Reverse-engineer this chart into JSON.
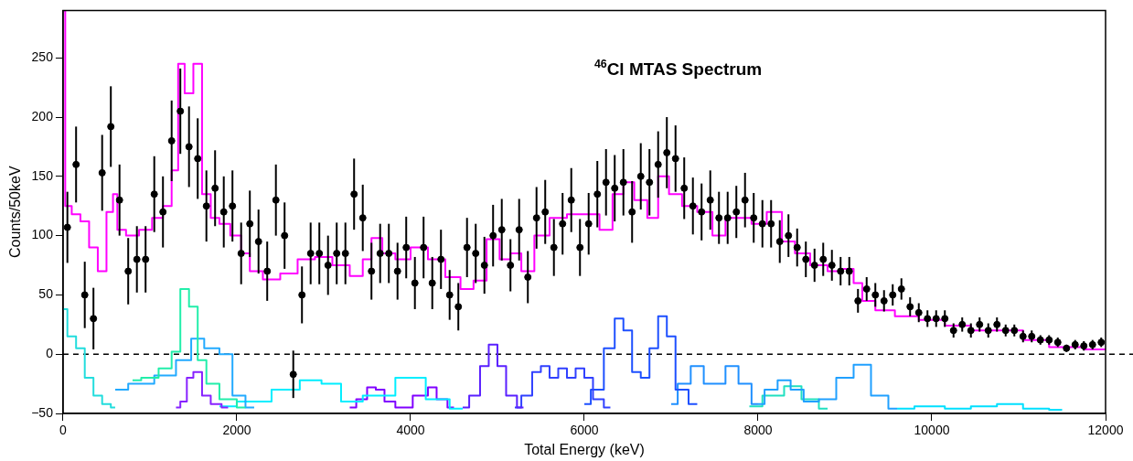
{
  "chart_data": {
    "type": "step",
    "title": "$^{46}$Cl MTAS Spectrum",
    "xlabel": "Total Energy (keV)",
    "ylabel": "Counts/50keV",
    "xlim": [
      0,
      12000
    ],
    "xticks": [
      0,
      2000,
      4000,
      6000,
      8000,
      10000,
      12000
    ],
    "ylim": [
      -50,
      290
    ],
    "yticks": [
      -50,
      0,
      50,
      100,
      150,
      200,
      250
    ],
    "grid": false,
    "legend": false,
    "ref_lines": [
      {
        "axis": "y",
        "value": 0,
        "color": "#000000",
        "line_style": "dashed"
      }
    ],
    "series": [
      {
        "type": "scatter",
        "marker": "circle",
        "color": "#000000",
        "x": [
          50,
          150,
          250,
          350,
          450,
          550,
          650,
          750,
          850,
          950,
          1050,
          1150,
          1250,
          1350,
          1450,
          1550,
          1650,
          1750,
          1850,
          1950,
          2050,
          2150,
          2250,
          2350,
          2450,
          2550,
          2650,
          2750,
          2850,
          2950,
          3050,
          3150,
          3250,
          3350,
          3450,
          3550,
          3650,
          3750,
          3850,
          3950,
          4050,
          4150,
          4250,
          4350,
          4450,
          4550,
          4650,
          4750,
          4850,
          4950,
          5050,
          5150,
          5250,
          5350,
          5450,
          5550,
          5650,
          5750,
          5850,
          5950,
          6050,
          6150,
          6250,
          6350,
          6450,
          6550,
          6650,
          6750,
          6850,
          6950,
          7050,
          7150,
          7250,
          7350,
          7450,
          7550,
          7650,
          7750,
          7850,
          7950,
          8050,
          8150,
          8250,
          8350,
          8450,
          8550,
          8650,
          8750,
          8850,
          8950,
          9050,
          9150,
          9250,
          9350,
          9450,
          9550,
          9650,
          9750,
          9850,
          9950,
          10050,
          10150,
          10250,
          10350,
          10450,
          10550,
          10650,
          10750,
          10850,
          10950,
          11050,
          11150,
          11250,
          11350,
          11450,
          11550,
          11650,
          11750,
          11850,
          11950
        ],
        "values": [
          107,
          160,
          50,
          30,
          153,
          192,
          130,
          70,
          80,
          80,
          135,
          120,
          180,
          205,
          175,
          165,
          125,
          140,
          120,
          125,
          85,
          110,
          95,
          70,
          130,
          100,
          -17,
          50,
          85,
          85,
          75,
          85,
          85,
          135,
          115,
          70,
          85,
          85,
          70,
          90,
          60,
          90,
          60,
          80,
          50,
          40,
          90,
          85,
          75,
          100,
          105,
          75,
          105,
          65,
          115,
          120,
          90,
          110,
          130,
          90,
          110,
          135,
          145,
          140,
          145,
          120,
          150,
          145,
          160,
          170,
          165,
          140,
          125,
          120,
          130,
          115,
          115,
          120,
          130,
          115,
          110,
          110,
          95,
          100,
          90,
          80,
          75,
          80,
          75,
          70,
          70,
          45,
          55,
          50,
          45,
          50,
          55,
          40,
          35,
          30,
          30,
          30,
          20,
          25,
          20,
          25,
          20,
          25,
          20,
          20,
          15,
          15,
          12,
          12,
          10,
          5,
          8,
          7,
          8,
          10
        ],
        "errors": [
          30,
          32,
          28,
          26,
          32,
          34,
          30,
          28,
          28,
          28,
          32,
          30,
          34,
          36,
          34,
          34,
          30,
          32,
          30,
          30,
          26,
          28,
          27,
          25,
          30,
          28,
          20,
          24,
          26,
          26,
          25,
          26,
          26,
          30,
          28,
          24,
          25,
          25,
          24,
          26,
          22,
          26,
          22,
          25,
          21,
          20,
          25,
          25,
          24,
          26,
          26,
          22,
          26,
          22,
          26,
          27,
          24,
          26,
          27,
          24,
          26,
          28,
          28,
          28,
          28,
          26,
          28,
          28,
          28,
          30,
          28,
          26,
          24,
          24,
          25,
          22,
          22,
          22,
          23,
          21,
          20,
          20,
          18,
          18,
          16,
          15,
          14,
          14,
          13,
          12,
          12,
          10,
          10,
          10,
          9,
          9,
          9,
          8,
          8,
          7,
          7,
          7,
          6,
          6,
          6,
          6,
          6,
          6,
          5,
          5,
          5,
          5,
          4,
          4,
          4,
          3,
          4,
          4,
          4,
          4
        ]
      },
      {
        "color": "#ff00ff",
        "x": [
          0,
          50,
          150,
          250,
          350,
          450,
          550,
          600,
          650,
          800,
          950,
          1100,
          1200,
          1300,
          1350,
          1450,
          1550,
          1650,
          1750,
          1850,
          2000,
          2100,
          2200,
          2400,
          2600,
          2800,
          3000,
          3200,
          3400,
          3500,
          3600,
          3750,
          3900,
          4100,
          4300,
          4500,
          4650,
          4800,
          4950,
          5100,
          5200,
          5350,
          5500,
          5700,
          5900,
          6100,
          6250,
          6400,
          6500,
          6650,
          6800,
          6900,
          7050,
          7200,
          7400,
          7550,
          7700,
          7850,
          8000,
          8200,
          8350,
          8500,
          8700,
          8900,
          9050,
          9150,
          9250,
          9450,
          9700,
          10000,
          10300,
          10600,
          10900,
          11200,
          11500,
          12000
        ],
        "values": [
          290,
          125,
          118,
          112,
          90,
          70,
          120,
          135,
          105,
          100,
          105,
          115,
          125,
          155,
          245,
          220,
          245,
          135,
          115,
          110,
          100,
          85,
          70,
          63,
          68,
          80,
          82,
          75,
          66,
          80,
          98,
          85,
          80,
          90,
          80,
          65,
          55,
          62,
          97,
          80,
          85,
          70,
          100,
          115,
          118,
          118,
          105,
          135,
          145,
          130,
          115,
          150,
          135,
          125,
          120,
          100,
          115,
          115,
          110,
          120,
          95,
          85,
          75,
          70,
          72,
          60,
          45,
          37,
          32,
          29,
          24,
          20,
          20,
          12,
          6,
          4
        ]
      },
      {
        "color": "#22dddd",
        "x": [
          0,
          100,
          200,
          300,
          400,
          500,
          600
        ],
        "values": [
          38,
          15,
          5,
          -20,
          -35,
          -42,
          -45
        ]
      },
      {
        "color": "#22eeaa",
        "x": [
          800,
          1000,
          1200,
          1300,
          1400,
          1500,
          1600,
          1700,
          1900,
          2100
        ],
        "values": [
          -22,
          -20,
          -12,
          2,
          55,
          40,
          -5,
          -25,
          -38,
          -45
        ]
      },
      {
        "color": "#22aaff",
        "x": [
          600,
          900,
          1200,
          1400,
          1550,
          1700,
          1900,
          2000,
          2200
        ],
        "values": [
          -30,
          -25,
          -18,
          -5,
          13,
          5,
          0,
          -35,
          -45
        ]
      },
      {
        "color": "#8822ff",
        "x": [
          1300,
          1400,
          1450,
          1550,
          1650,
          1750,
          1900
        ],
        "values": [
          -45,
          -40,
          -20,
          -15,
          -35,
          -42,
          -45
        ]
      },
      {
        "color": "#00eeff",
        "x": [
          1800,
          2200,
          2600,
          2850,
          3100,
          3300,
          3600,
          4050,
          4300,
          4600
        ],
        "values": [
          -44,
          -40,
          -30,
          -22,
          -25,
          -40,
          -35,
          -20,
          -38,
          -46
        ]
      },
      {
        "color": "#8000ff",
        "x": [
          3300,
          3450,
          3550,
          3650,
          3750,
          3900,
          4150,
          4250,
          4350,
          4500
        ],
        "values": [
          -45,
          -38,
          -28,
          -30,
          -40,
          -45,
          -35,
          -28,
          -38,
          -45
        ]
      },
      {
        "color": "#5a20ff",
        "x": [
          4600,
          4750,
          4850,
          4950,
          5050,
          5150,
          5300
        ],
        "values": [
          -45,
          -35,
          -10,
          8,
          -10,
          -35,
          -45
        ]
      },
      {
        "color": "#3040ff",
        "x": [
          5200,
          5350,
          5450,
          5550,
          5650,
          5750,
          5850,
          5950,
          6050,
          6150,
          6300
        ],
        "values": [
          -45,
          -35,
          -15,
          -10,
          -20,
          -12,
          -20,
          -12,
          -20,
          -38,
          -45
        ]
      },
      {
        "color": "#1e50ff",
        "x": [
          6000,
          6150,
          6300,
          6400,
          6500,
          6600,
          6700,
          6800,
          6900,
          7000,
          7100,
          7300
        ],
        "values": [
          -42,
          -30,
          5,
          30,
          20,
          -15,
          -20,
          5,
          32,
          15,
          -30,
          -42
        ]
      },
      {
        "color": "#2090ff",
        "x": [
          7000,
          7150,
          7300,
          7450,
          7550,
          7700,
          7850,
          8000
        ],
        "values": [
          -42,
          -25,
          -10,
          -25,
          -25,
          -10,
          -25,
          -42
        ]
      },
      {
        "color": "#20a0ff",
        "x": [
          8000,
          8150,
          8300,
          8450,
          8600,
          8800,
          9000,
          9200,
          9400,
          9600
        ],
        "values": [
          -42,
          -30,
          -22,
          -30,
          -40,
          -38,
          -20,
          -9,
          -35,
          -46
        ]
      },
      {
        "color": "#20e0c0",
        "x": [
          7900,
          8200,
          8400,
          8600,
          8800
        ],
        "values": [
          -44,
          -35,
          -27,
          -38,
          -46
        ]
      },
      {
        "color": "#00e0ff",
        "x": [
          9600,
          10000,
          10300,
          10600,
          10900,
          11200,
          11500
        ],
        "values": [
          -46,
          -44,
          -46,
          -44,
          -42,
          -46,
          -47
        ]
      }
    ]
  }
}
